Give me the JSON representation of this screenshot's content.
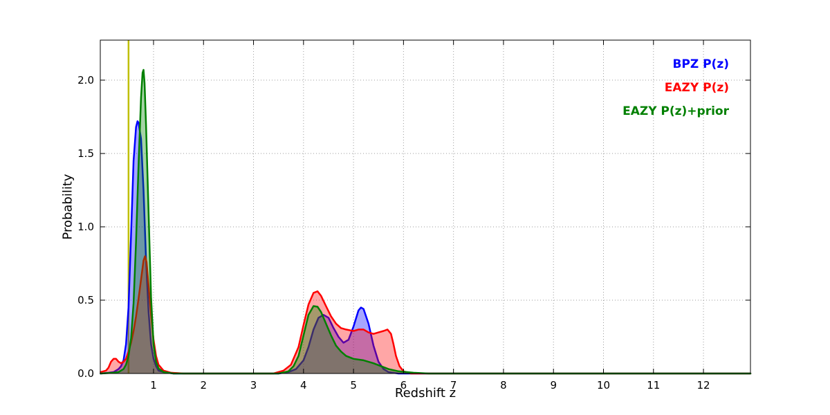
{
  "chart_data": {
    "type": "area",
    "title": "",
    "xlabel": "Redshift z",
    "ylabel": "Probability",
    "xlim": [
      -0.065,
      12.94
    ],
    "ylim": [
      0,
      2.273
    ],
    "grid": true,
    "legend_position": "top-right",
    "x_ticks": [
      1,
      2,
      3,
      4,
      5,
      6,
      7,
      8,
      9,
      10,
      11,
      12
    ],
    "x_tick_labels": [
      "1",
      "2",
      "3",
      "4",
      "5",
      "6",
      "7",
      "8",
      "9",
      "10",
      "11",
      "12"
    ],
    "y_ticks": [
      0,
      0.5,
      1,
      1.5,
      2
    ],
    "y_tick_labels": [
      "0.0",
      "0.5",
      "1.0",
      "1.5",
      "2.0"
    ],
    "vline": {
      "x": 0.5,
      "color": "#bfbf00"
    },
    "series": [
      {
        "name": "BPZ P(z)",
        "color": "#0000ff",
        "fill_opacity": 0.35,
        "points": [
          [
            -0.06,
            0
          ],
          [
            0.1,
            0.005
          ],
          [
            0.2,
            0.01
          ],
          [
            0.3,
            0.03
          ],
          [
            0.35,
            0.05
          ],
          [
            0.4,
            0.09
          ],
          [
            0.45,
            0.2
          ],
          [
            0.5,
            0.45
          ],
          [
            0.55,
            0.95
          ],
          [
            0.6,
            1.45
          ],
          [
            0.65,
            1.68
          ],
          [
            0.68,
            1.72
          ],
          [
            0.7,
            1.71
          ],
          [
            0.75,
            1.6
          ],
          [
            0.8,
            1.25
          ],
          [
            0.85,
            0.78
          ],
          [
            0.9,
            0.42
          ],
          [
            0.95,
            0.2
          ],
          [
            1.0,
            0.1
          ],
          [
            1.05,
            0.05
          ],
          [
            1.1,
            0.02
          ],
          [
            1.2,
            0.01
          ],
          [
            1.4,
            0
          ],
          [
            3.5,
            0
          ],
          [
            3.7,
            0.01
          ],
          [
            3.85,
            0.03
          ],
          [
            4.0,
            0.09
          ],
          [
            4.1,
            0.18
          ],
          [
            4.2,
            0.3
          ],
          [
            4.3,
            0.38
          ],
          [
            4.4,
            0.4
          ],
          [
            4.5,
            0.38
          ],
          [
            4.6,
            0.31
          ],
          [
            4.7,
            0.25
          ],
          [
            4.8,
            0.21
          ],
          [
            4.9,
            0.23
          ],
          [
            5.0,
            0.32
          ],
          [
            5.1,
            0.43
          ],
          [
            5.15,
            0.45
          ],
          [
            5.2,
            0.44
          ],
          [
            5.3,
            0.34
          ],
          [
            5.4,
            0.19
          ],
          [
            5.5,
            0.08
          ],
          [
            5.6,
            0.03
          ],
          [
            5.7,
            0.01
          ],
          [
            5.9,
            0
          ],
          [
            12.94,
            0
          ]
        ]
      },
      {
        "name": "EAZY P(z)",
        "color": "#ff0000",
        "fill_opacity": 0.35,
        "points": [
          [
            -0.06,
            0.01
          ],
          [
            0.05,
            0.02
          ],
          [
            0.1,
            0.04
          ],
          [
            0.15,
            0.08
          ],
          [
            0.2,
            0.1
          ],
          [
            0.25,
            0.1
          ],
          [
            0.3,
            0.08
          ],
          [
            0.35,
            0.07
          ],
          [
            0.4,
            0.08
          ],
          [
            0.45,
            0.1
          ],
          [
            0.5,
            0.15
          ],
          [
            0.55,
            0.21
          ],
          [
            0.6,
            0.29
          ],
          [
            0.65,
            0.39
          ],
          [
            0.7,
            0.51
          ],
          [
            0.75,
            0.64
          ],
          [
            0.8,
            0.77
          ],
          [
            0.83,
            0.8
          ],
          [
            0.86,
            0.76
          ],
          [
            0.9,
            0.6
          ],
          [
            0.95,
            0.4
          ],
          [
            1.0,
            0.23
          ],
          [
            1.05,
            0.12
          ],
          [
            1.1,
            0.06
          ],
          [
            1.2,
            0.02
          ],
          [
            1.35,
            0.005
          ],
          [
            1.6,
            0
          ],
          [
            3.4,
            0
          ],
          [
            3.6,
            0.02
          ],
          [
            3.75,
            0.06
          ],
          [
            3.9,
            0.18
          ],
          [
            4.0,
            0.33
          ],
          [
            4.1,
            0.47
          ],
          [
            4.2,
            0.55
          ],
          [
            4.28,
            0.56
          ],
          [
            4.35,
            0.53
          ],
          [
            4.45,
            0.46
          ],
          [
            4.55,
            0.39
          ],
          [
            4.65,
            0.34
          ],
          [
            4.75,
            0.31
          ],
          [
            4.85,
            0.3
          ],
          [
            5.0,
            0.29
          ],
          [
            5.1,
            0.3
          ],
          [
            5.2,
            0.3
          ],
          [
            5.3,
            0.28
          ],
          [
            5.4,
            0.27
          ],
          [
            5.5,
            0.28
          ],
          [
            5.6,
            0.29
          ],
          [
            5.68,
            0.3
          ],
          [
            5.75,
            0.27
          ],
          [
            5.8,
            0.2
          ],
          [
            5.85,
            0.12
          ],
          [
            5.92,
            0.05
          ],
          [
            6.0,
            0.015
          ],
          [
            6.15,
            0
          ],
          [
            12.94,
            0
          ]
        ]
      },
      {
        "name": "EAZY P(z)+prior",
        "color": "#008000",
        "fill_opacity": 0.35,
        "points": [
          [
            -0.06,
            0
          ],
          [
            0.2,
            0.005
          ],
          [
            0.3,
            0.01
          ],
          [
            0.4,
            0.03
          ],
          [
            0.45,
            0.06
          ],
          [
            0.5,
            0.12
          ],
          [
            0.55,
            0.24
          ],
          [
            0.6,
            0.48
          ],
          [
            0.65,
            0.9
          ],
          [
            0.7,
            1.42
          ],
          [
            0.75,
            1.88
          ],
          [
            0.78,
            2.05
          ],
          [
            0.8,
            2.07
          ],
          [
            0.82,
            1.98
          ],
          [
            0.85,
            1.7
          ],
          [
            0.9,
            1.1
          ],
          [
            0.95,
            0.52
          ],
          [
            1.0,
            0.2
          ],
          [
            1.05,
            0.08
          ],
          [
            1.1,
            0.035
          ],
          [
            1.2,
            0.01
          ],
          [
            1.4,
            0
          ],
          [
            3.5,
            0
          ],
          [
            3.7,
            0.015
          ],
          [
            3.8,
            0.05
          ],
          [
            3.9,
            0.12
          ],
          [
            4.0,
            0.26
          ],
          [
            4.1,
            0.4
          ],
          [
            4.2,
            0.46
          ],
          [
            4.28,
            0.455
          ],
          [
            4.35,
            0.42
          ],
          [
            4.45,
            0.34
          ],
          [
            4.55,
            0.26
          ],
          [
            4.65,
            0.19
          ],
          [
            4.75,
            0.15
          ],
          [
            4.85,
            0.12
          ],
          [
            5.0,
            0.1
          ],
          [
            5.2,
            0.09
          ],
          [
            5.4,
            0.07
          ],
          [
            5.55,
            0.05
          ],
          [
            5.7,
            0.03
          ],
          [
            5.9,
            0.015
          ],
          [
            6.2,
            0.005
          ],
          [
            6.5,
            0
          ],
          [
            12.94,
            0
          ]
        ]
      }
    ]
  }
}
